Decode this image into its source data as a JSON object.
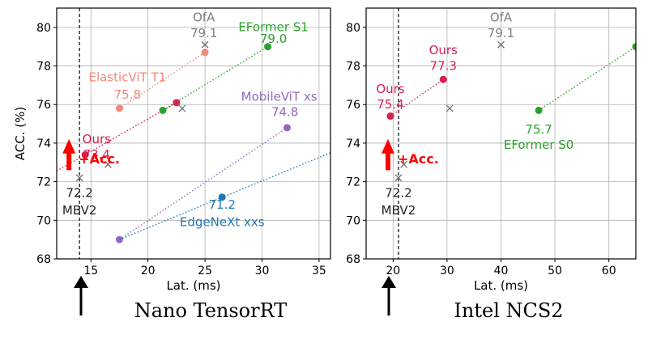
{
  "chart_data": [
    {
      "type": "scatter",
      "subtitle": "Nano TensorRT",
      "xlabel": "Lat. (ms)",
      "ylabel": "ACC. (%)",
      "xlim": [
        12,
        36
      ],
      "ylim": [
        68,
        81
      ],
      "xticks": [
        15,
        20,
        25,
        30,
        35
      ],
      "yticks": [
        68,
        70,
        72,
        74,
        76,
        78,
        80
      ],
      "grid": true,
      "baseline_latency": 14.0,
      "baseline_label": "72.2",
      "baseline_model": "MBV2",
      "gain_label": "+Acc.",
      "series": [
        {
          "name": "Ours",
          "color": "#d6204e",
          "points": [
            [
              14.5,
              73.4
            ],
            [
              22.5,
              76.1
            ]
          ],
          "line_extend_x": 12
        },
        {
          "name": "ElasticViT T1",
          "color": "#f4877a",
          "points": [
            [
              17.5,
              75.8
            ],
            [
              25.0,
              78.7
            ]
          ]
        },
        {
          "name": "EFormer S1",
          "color": "#2ca02c",
          "points": [
            [
              21.3,
              75.7
            ],
            [
              30.5,
              79.0
            ]
          ]
        },
        {
          "name": "MobileViT xs",
          "color": "#9467bd",
          "points": [
            [
              17.5,
              69.0
            ],
            [
              32.2,
              74.8
            ]
          ]
        },
        {
          "name": "EdgeNeXt xxs",
          "color": "#1f77b4",
          "points": [
            [
              26.5,
              71.2
            ]
          ],
          "line_from": [
            17.5,
            69.0
          ],
          "line_to": [
            36.0,
            73.5
          ]
        }
      ],
      "crosses": [
        [
          14.0,
          72.2
        ],
        [
          16.5,
          72.9
        ],
        [
          23.0,
          75.8
        ],
        [
          25.0,
          79.1
        ]
      ],
      "labels": [
        {
          "text": "OfA",
          "x": 24.9,
          "y": 80.3,
          "color": "#808080"
        },
        {
          "text": "79.1",
          "x": 24.9,
          "y": 79.5,
          "color": "#808080"
        },
        {
          "text": "EFormer S1",
          "x": 31.0,
          "y": 79.8,
          "color": "#2ca02c"
        },
        {
          "text": "79.0",
          "x": 31.0,
          "y": 79.2,
          "color": "#2ca02c"
        },
        {
          "text": "ElasticViT T1",
          "x": 18.2,
          "y": 77.2,
          "color": "#f4877a"
        },
        {
          "text": "75.8",
          "x": 18.2,
          "y": 76.3,
          "color": "#f4877a"
        },
        {
          "text": "MobileViT xs",
          "x": 31.5,
          "y": 76.2,
          "color": "#9467bd"
        },
        {
          "text": "74.8",
          "x": 32.0,
          "y": 75.4,
          "color": "#9467bd"
        },
        {
          "text": "Ours",
          "x": 15.5,
          "y": 74.0,
          "color": "#d6204e"
        },
        {
          "text": "73.4",
          "x": 15.5,
          "y": 73.2,
          "color": "#d6204e"
        },
        {
          "text": "71.2",
          "x": 26.5,
          "y": 70.6,
          "color": "#1f77b4"
        },
        {
          "text": "EdgeNeXt xxs",
          "x": 26.5,
          "y": 69.7,
          "color": "#1f77b4"
        },
        {
          "text": "72.2",
          "x": 14.0,
          "y": 71.2,
          "color": "#222222"
        },
        {
          "text": "MBV2",
          "x": 14.0,
          "y": 70.3,
          "color": "#222222"
        }
      ]
    },
    {
      "type": "scatter",
      "subtitle": "Intel NCS2",
      "xlabel": "Lat. (ms)",
      "ylabel": "",
      "xlim": [
        15,
        65
      ],
      "ylim": [
        68,
        81
      ],
      "xticks": [
        20,
        30,
        40,
        50,
        60
      ],
      "yticks": [
        68,
        70,
        72,
        74,
        76,
        78,
        80
      ],
      "grid": true,
      "baseline_latency": 21.0,
      "baseline_label": "72.2",
      "baseline_model": "MBV2",
      "gain_label": "+Acc.",
      "series": [
        {
          "name": "Ours",
          "color": "#d6204e",
          "points": [
            [
              19.5,
              75.4
            ],
            [
              29.3,
              77.3
            ]
          ]
        },
        {
          "name": "EFormer S0",
          "color": "#2ca02c",
          "points": [
            [
              47.0,
              75.7
            ],
            [
              65.0,
              79.0
            ]
          ]
        }
      ],
      "crosses": [
        [
          21.0,
          72.2
        ],
        [
          22.0,
          72.9
        ],
        [
          30.5,
          75.8
        ],
        [
          40.0,
          79.1
        ]
      ],
      "labels": [
        {
          "text": "OfA",
          "x": 40.0,
          "y": 80.3,
          "color": "#808080"
        },
        {
          "text": "79.1",
          "x": 40.0,
          "y": 79.5,
          "color": "#808080"
        },
        {
          "text": "Ours",
          "x": 29.3,
          "y": 78.6,
          "color": "#d6204e"
        },
        {
          "text": "77.3",
          "x": 29.3,
          "y": 77.8,
          "color": "#d6204e"
        },
        {
          "text": "Ours",
          "x": 19.5,
          "y": 76.6,
          "color": "#d6204e"
        },
        {
          "text": "75.4",
          "x": 19.5,
          "y": 75.8,
          "color": "#d6204e"
        },
        {
          "text": "75.7",
          "x": 47.0,
          "y": 74.5,
          "color": "#2ca02c"
        },
        {
          "text": "EFormer S0",
          "x": 47.0,
          "y": 73.7,
          "color": "#2ca02c"
        },
        {
          "text": "72.2",
          "x": 21.0,
          "y": 71.2,
          "color": "#222222"
        },
        {
          "text": "MBV2",
          "x": 21.0,
          "y": 70.3,
          "color": "#222222"
        }
      ]
    }
  ]
}
